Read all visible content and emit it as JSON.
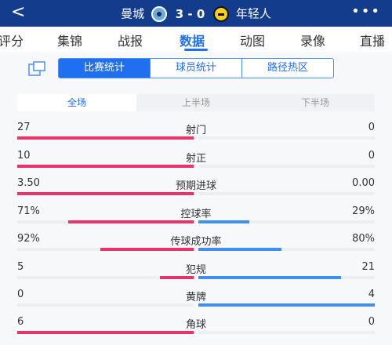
{
  "header": {
    "back_glyph": "<",
    "home_team": "曼城",
    "away_team": "年轻人",
    "score": "3 - 0",
    "more_glyph": "•••",
    "home_badge_icon": "man-city-badge-icon",
    "away_badge_icon": "young-boys-badge-icon"
  },
  "tabs": [
    {
      "label": "评分"
    },
    {
      "label": "集锦"
    },
    {
      "label": "战报"
    },
    {
      "label": "数据"
    },
    {
      "label": "动图"
    },
    {
      "label": "录像"
    },
    {
      "label": "直播"
    }
  ],
  "active_tab": "数据",
  "segments": [
    "比赛统计",
    "球员统计",
    "路径热区"
  ],
  "active_segment": "比赛统计",
  "periods": [
    "全场",
    "上半场",
    "下半场"
  ],
  "active_period": "全场",
  "colors": {
    "home": "#e8336b",
    "away": "#3f8ff0",
    "accent": "#1f6ff0",
    "header": "#143c8c"
  },
  "stats": [
    {
      "label": "射门",
      "home": "27",
      "away": "0",
      "home_ratio": 1.0,
      "away_ratio": 0.0
    },
    {
      "label": "射正",
      "home": "10",
      "away": "0",
      "home_ratio": 1.0,
      "away_ratio": 0.0
    },
    {
      "label": "预期进球",
      "home": "3.50",
      "away": "0.00",
      "home_ratio": 1.0,
      "away_ratio": 0.0
    },
    {
      "label": "控球率",
      "home": "71%",
      "away": "29%",
      "home_ratio": 0.71,
      "away_ratio": 0.29
    },
    {
      "label": "传球成功率",
      "home": "92%",
      "away": "80%",
      "home_ratio": 0.53,
      "away_ratio": 0.47
    },
    {
      "label": "犯规",
      "home": "5",
      "away": "21",
      "home_ratio": 0.19,
      "away_ratio": 0.81
    },
    {
      "label": "黄牌",
      "home": "0",
      "away": "4",
      "home_ratio": 0.0,
      "away_ratio": 1.0
    },
    {
      "label": "角球",
      "home": "6",
      "away": "0",
      "home_ratio": 1.0,
      "away_ratio": 0.0
    }
  ]
}
